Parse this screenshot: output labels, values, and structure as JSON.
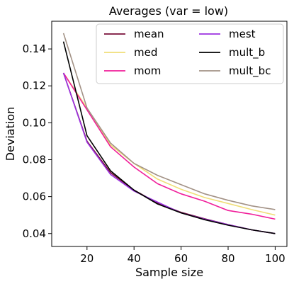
{
  "chart_data": {
    "type": "line",
    "title": "Averages (var = low)",
    "xlabel": "Sample size",
    "ylabel": "Deviation",
    "xlim": [
      5,
      105
    ],
    "ylim": [
      0.033,
      0.155
    ],
    "xticks": [
      20,
      40,
      60,
      80,
      100
    ],
    "yticks": [
      0.04,
      0.06,
      0.08,
      0.1,
      0.12,
      0.14
    ],
    "ytick_labels": [
      "0.04",
      "0.06",
      "0.08",
      "0.10",
      "0.12",
      "0.14"
    ],
    "grid": false,
    "legend_position": "top-right",
    "x": [
      10,
      20,
      30,
      40,
      50,
      60,
      70,
      80,
      90,
      100
    ],
    "series": [
      {
        "name": "mean",
        "color": "#7a0f3a",
        "values": [
          0.127,
          0.09,
          0.073,
          0.0635,
          0.0565,
          0.0515,
          0.048,
          0.0448,
          0.042,
          0.04
        ]
      },
      {
        "name": "med",
        "color": "#f0de78",
        "values": [
          0.127,
          0.108,
          0.088,
          0.078,
          0.0695,
          0.064,
          0.0595,
          0.0563,
          0.053,
          0.05
        ]
      },
      {
        "name": "mom",
        "color": "#f01e9a",
        "values": [
          0.127,
          0.107,
          0.087,
          0.076,
          0.067,
          0.0615,
          0.0575,
          0.0525,
          0.0505,
          0.0478
        ]
      },
      {
        "name": "mest",
        "color": "#9b30e0",
        "values": [
          0.127,
          0.0895,
          0.072,
          0.063,
          0.057,
          0.0512,
          0.0478,
          0.0448,
          0.042,
          0.04
        ]
      },
      {
        "name": "mult_b",
        "color": "#000000",
        "values": [
          0.144,
          0.093,
          0.074,
          0.0635,
          0.056,
          0.0512,
          0.0475,
          0.0445,
          0.042,
          0.04
        ]
      },
      {
        "name": "mult_bc",
        "color": "#a39286",
        "values": [
          0.1485,
          0.108,
          0.089,
          0.078,
          0.0715,
          0.0665,
          0.0615,
          0.058,
          0.055,
          0.053
        ]
      }
    ]
  }
}
